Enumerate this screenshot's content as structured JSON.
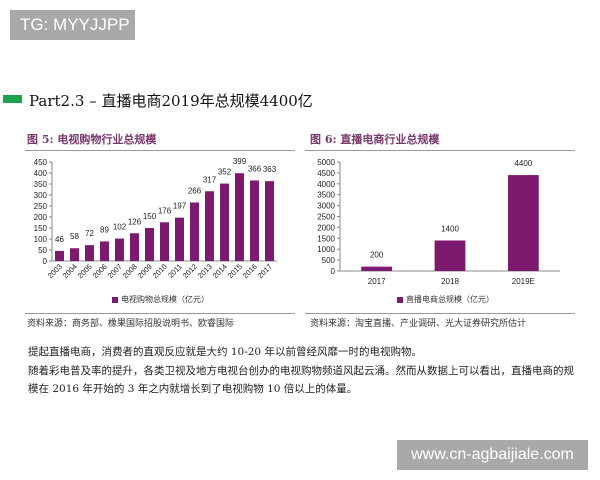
{
  "watermarks": {
    "top_left": "TG: MYYJJPP",
    "bottom_right": "www.cn-agbaijiale.com"
  },
  "heading": "Part2.3  –  直播电商2019年总规模4400亿",
  "colors": {
    "bar": "#7b1a6e",
    "accent_green": "#1aa34a"
  },
  "chart_data": [
    {
      "type": "bar",
      "title": "图 5:  电视购物行业总规模",
      "categories": [
        "2003",
        "2004",
        "2005",
        "2006",
        "2007",
        "2008",
        "2009",
        "2010",
        "2011",
        "2012",
        "2013",
        "2014",
        "2015",
        "2016",
        "2017"
      ],
      "series": [
        {
          "name": "电视购物总规模（亿元）",
          "values": [
            46,
            58,
            72,
            89,
            102,
            126,
            150,
            176,
            197,
            266,
            317,
            352,
            399,
            366,
            363
          ]
        }
      ],
      "yticks": [
        0,
        50,
        100,
        150,
        200,
        250,
        300,
        350,
        400,
        450
      ],
      "ylim": [
        0,
        450
      ],
      "legend": "bottom",
      "source": "资料来源：商务部、橡果国际招股说明书、欧睿国际"
    },
    {
      "type": "bar",
      "title": "图 6:  直播电商行业总规模",
      "categories": [
        "2017",
        "2018",
        "2019E"
      ],
      "series": [
        {
          "name": "直播电商总规模（亿元）",
          "values": [
            200,
            1400,
            4400
          ]
        }
      ],
      "yticks": [
        0,
        500,
        1000,
        1500,
        2000,
        2500,
        3000,
        3500,
        4000,
        4500,
        5000
      ],
      "ylim": [
        0,
        5000
      ],
      "legend": "bottom",
      "source": "资料来源：淘宝直播、产业调研、光大证券研究所估计"
    }
  ],
  "paragraph": [
    "提起直播电商，消费者的直观反应就是大约 10-20 年以前曾经风靡一时的电视购物。",
    "随着彩电普及率的提升，各类卫视及地方电视台创办的电视购物频道风起云涌。然而从数据上可以看出，直播电商的规",
    "模在 2016 年开始的 3 年之内就增长到了电视购物 10 倍以上的体量。"
  ]
}
